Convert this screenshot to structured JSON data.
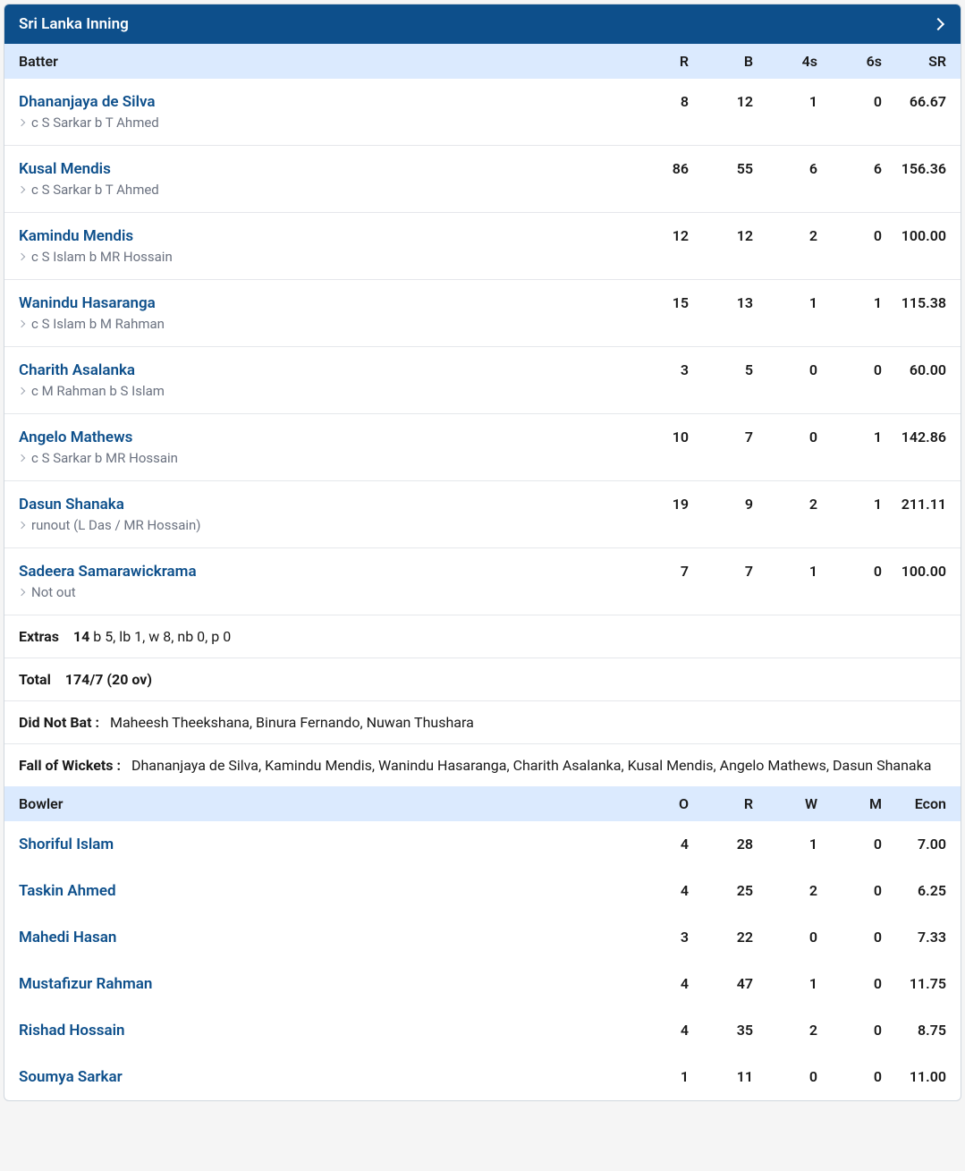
{
  "inning_title": "Sri Lanka Inning",
  "batter_header": {
    "name": "Batter",
    "r": "R",
    "b": "B",
    "fours": "4s",
    "sixes": "6s",
    "sr": "SR"
  },
  "batters": [
    {
      "name": "Dhananjaya de Silva",
      "dismissal": "c S Sarkar b T Ahmed",
      "r": "8",
      "b": "12",
      "fours": "1",
      "sixes": "0",
      "sr": "66.67"
    },
    {
      "name": "Kusal Mendis",
      "dismissal": "c S Sarkar b T Ahmed",
      "r": "86",
      "b": "55",
      "fours": "6",
      "sixes": "6",
      "sr": "156.36"
    },
    {
      "name": "Kamindu Mendis",
      "dismissal": "c S Islam b MR Hossain",
      "r": "12",
      "b": "12",
      "fours": "2",
      "sixes": "0",
      "sr": "100.00"
    },
    {
      "name": "Wanindu Hasaranga",
      "dismissal": "c S Islam b M Rahman",
      "r": "15",
      "b": "13",
      "fours": "1",
      "sixes": "1",
      "sr": "115.38"
    },
    {
      "name": "Charith Asalanka",
      "dismissal": "c M Rahman b S Islam",
      "r": "3",
      "b": "5",
      "fours": "0",
      "sixes": "0",
      "sr": "60.00"
    },
    {
      "name": "Angelo Mathews",
      "dismissal": "c S Sarkar b MR Hossain",
      "r": "10",
      "b": "7",
      "fours": "0",
      "sixes": "1",
      "sr": "142.86"
    },
    {
      "name": "Dasun Shanaka",
      "dismissal": "runout (L Das / MR Hossain)",
      "r": "19",
      "b": "9",
      "fours": "2",
      "sixes": "1",
      "sr": "211.11"
    },
    {
      "name": "Sadeera Samarawickrama",
      "dismissal": "Not out",
      "r": "7",
      "b": "7",
      "fours": "1",
      "sixes": "0",
      "sr": "100.00"
    }
  ],
  "extras": {
    "label": "Extras",
    "count": "14",
    "detail": "b 5, lb 1, w 8, nb 0, p 0"
  },
  "total": {
    "label": "Total",
    "value": "174/7 (20 ov)"
  },
  "did_not_bat": {
    "label": "Did Not Bat :",
    "value": "Maheesh Theekshana, Binura Fernando, Nuwan Thushara"
  },
  "fall_of_wickets": {
    "label": "Fall of Wickets :",
    "value": "Dhananjaya de Silva, Kamindu Mendis, Wanindu Hasaranga, Charith Asalanka, Kusal Mendis, Angelo Mathews, Dasun Shanaka"
  },
  "bowler_header": {
    "name": "Bowler",
    "o": "O",
    "r": "R",
    "w": "W",
    "m": "M",
    "econ": "Econ"
  },
  "bowlers": [
    {
      "name": "Shoriful Islam",
      "o": "4",
      "r": "28",
      "w": "1",
      "m": "0",
      "econ": "7.00"
    },
    {
      "name": "Taskin Ahmed",
      "o": "4",
      "r": "25",
      "w": "2",
      "m": "0",
      "econ": "6.25"
    },
    {
      "name": "Mahedi Hasan",
      "o": "3",
      "r": "22",
      "w": "0",
      "m": "0",
      "econ": "7.33"
    },
    {
      "name": "Mustafizur Rahman",
      "o": "4",
      "r": "47",
      "w": "1",
      "m": "0",
      "econ": "11.75"
    },
    {
      "name": "Rishad Hossain",
      "o": "4",
      "r": "35",
      "w": "2",
      "m": "0",
      "econ": "8.75"
    },
    {
      "name": "Soumya Sarkar",
      "o": "1",
      "r": "11",
      "w": "0",
      "m": "0",
      "econ": "11.00"
    }
  ],
  "colors": {
    "header_bg": "#0d4f8b",
    "subheader_bg": "#dbeafe",
    "link_color": "#0d4f8b",
    "border_color": "#e5e7eb",
    "muted_text": "#6b7280"
  }
}
